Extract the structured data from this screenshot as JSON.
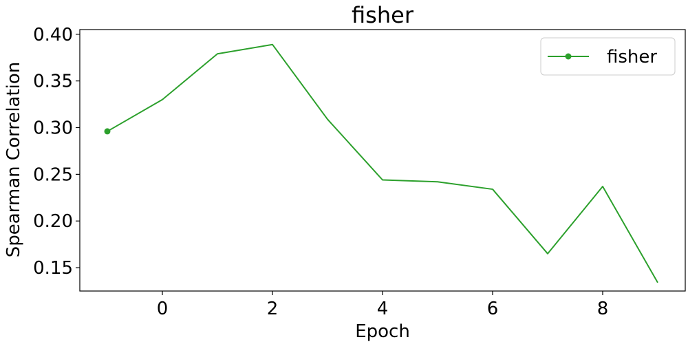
{
  "chart_data": {
    "type": "line",
    "title": "fisher",
    "xlabel": "Epoch",
    "ylabel": "Spearman Correlation",
    "xlim": [
      -1.5,
      9.5
    ],
    "ylim": [
      0.125,
      0.405
    ],
    "xticks": [
      0,
      2,
      4,
      6,
      8
    ],
    "xtick_labels": [
      "0",
      "2",
      "4",
      "6",
      "8"
    ],
    "yticks": [
      0.15,
      0.2,
      0.25,
      0.3,
      0.35,
      0.4
    ],
    "ytick_labels": [
      "0.15",
      "0.20",
      "0.25",
      "0.30",
      "0.35",
      "0.40"
    ],
    "grid": false,
    "legend_position": "top-right",
    "series": [
      {
        "name": "fisher",
        "color": "#2ca02c",
        "marker_at_first_point": true,
        "x": [
          -1,
          0,
          1,
          2,
          3,
          4,
          5,
          6,
          7,
          8,
          9
        ],
        "y": [
          0.296,
          0.33,
          0.379,
          0.389,
          0.309,
          0.244,
          0.242,
          0.234,
          0.165,
          0.237,
          0.134
        ]
      }
    ]
  }
}
